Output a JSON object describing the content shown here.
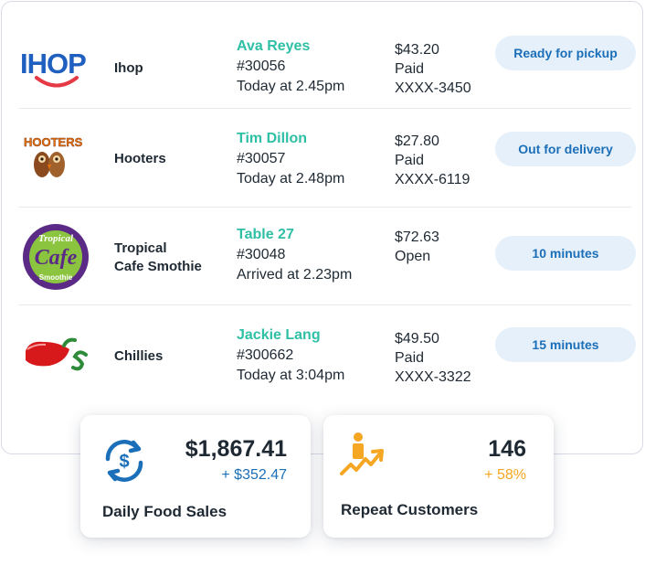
{
  "orders": [
    {
      "store": "Ihop",
      "logo": "ihop-logo",
      "customer": "Ava Reyes",
      "order_number": "#30056",
      "time": "Today at 2.45pm",
      "amount": "$43.20",
      "payment_status": "Paid",
      "card": "XXXX-3450",
      "status": "Ready for pickup"
    },
    {
      "store": "Hooters",
      "logo": "hooters-logo",
      "customer": "Tim Dillon",
      "order_number": "#30057",
      "time": "Today at 2.48pm",
      "amount": "$27.80",
      "payment_status": "Paid",
      "card": "XXXX-6119",
      "status": "Out for delivery"
    },
    {
      "store_line1": "Tropical",
      "store_line2": "Cafe Smothie",
      "logo": "tropical-smoothie-cafe-logo",
      "customer": "Table 27",
      "order_number": "#30048",
      "time": "Arrived at 2.23pm",
      "amount": "$72.63",
      "payment_status": "Open",
      "status": "10 minutes"
    },
    {
      "store": "Chillies",
      "logo": "chilis-pepper-logo",
      "customer": "Jackie Lang",
      "order_number": "#300662",
      "time": "Today at 3:04pm",
      "amount": "$49.50",
      "payment_status": "Paid",
      "card": "XXXX-3322",
      "status": "15 minutes"
    }
  ],
  "logo_text": {
    "ihop": "IHOP",
    "hooters": "HOOTERS",
    "tropical_top": "Tropical",
    "tropical_mid": "Cafe",
    "tropical_bottom": "Smoothie"
  },
  "stats": {
    "sales": {
      "value": "$1,867.41",
      "delta": "+ $352.47",
      "label": "Daily Food Sales",
      "icon": "dollar-cycle-icon"
    },
    "repeat": {
      "value": "146",
      "delta": "+ 58%",
      "label": "Repeat Customers",
      "icon": "person-climbing-stairs-icon"
    }
  },
  "colors": {
    "customer_name": "#2ebfa5",
    "status_pill_bg": "#e6f0fa",
    "status_pill_text": "#1b6fb8",
    "sales_delta": "#1b6fb8",
    "repeat_delta": "#f5a623"
  }
}
